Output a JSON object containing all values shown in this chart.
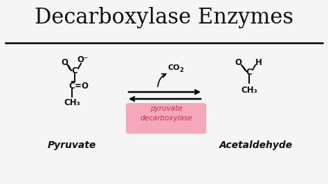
{
  "title": "Decarboxylase Enzymes",
  "title_fontsize": 22,
  "bg_color": "#f5f5f5",
  "text_color": "#111111",
  "pink_box_color": "#f4a8b8",
  "pink_text": "pyruvate\ndecarboxylase",
  "pyruvate_label": "Pyruvate",
  "acetaldehyde_label": "Acetaldehyde",
  "co2_label": "CO",
  "enzyme_text_color": "#c03060",
  "figsize": [
    4.74,
    2.66
  ],
  "dpi": 100
}
